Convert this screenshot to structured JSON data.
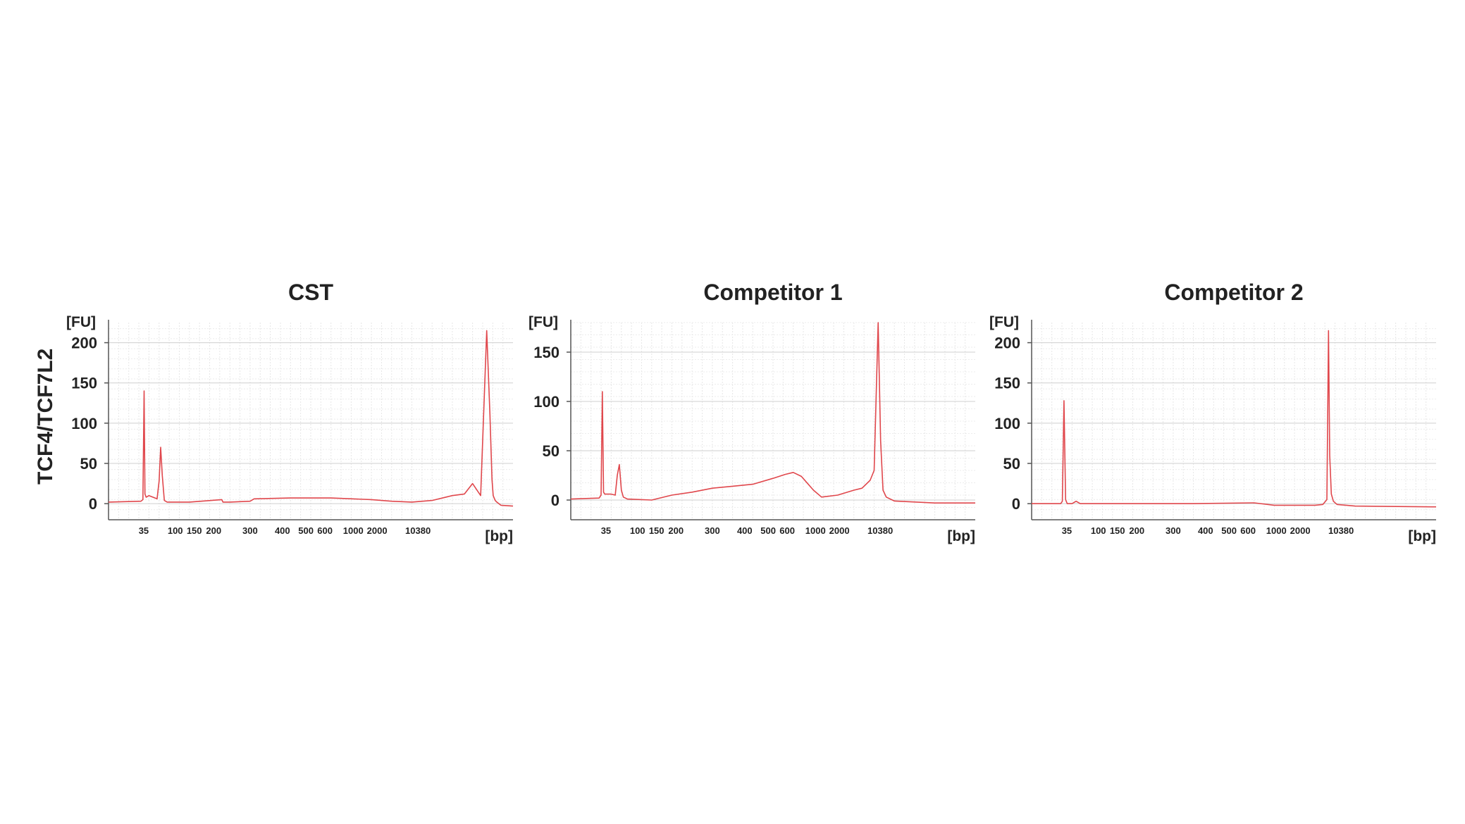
{
  "figure": {
    "gene_label": "TCF4/TCF7L2",
    "trace_color": "#e0474c",
    "grid_color": "#cfcfcf",
    "axis_color": "#555555"
  },
  "chart_data": [
    {
      "type": "line",
      "title": "CST",
      "ylabel": "[FU]",
      "xlabel": "[bp]",
      "ylim": [
        -20,
        225
      ],
      "yticks": [
        0,
        50,
        100,
        150,
        200
      ],
      "xticks": [
        "35",
        "100",
        "150",
        "200",
        "300",
        "400",
        "500",
        "600",
        "1000",
        "2000",
        "10380"
      ],
      "grid": true,
      "series": [
        {
          "x": [
            0,
            8,
            8.5,
            8.8,
            9.0,
            9.3,
            10,
            12,
            12.5,
            12.9,
            13.3,
            13.8,
            14.5,
            16,
            20,
            28,
            28.3,
            30,
            35,
            36,
            45,
            55,
            65,
            70,
            75,
            80,
            85,
            88,
            90,
            92,
            93.5,
            94.3,
            94.8,
            95.1,
            95.6,
            96,
            97,
            100
          ],
          "y": [
            2,
            3,
            5,
            140,
            12,
            8,
            10,
            6,
            28,
            70,
            35,
            4,
            2,
            2,
            2,
            5,
            2,
            2,
            3,
            6,
            7,
            7,
            5,
            3,
            2,
            4,
            10,
            12,
            25,
            10,
            215,
            110,
            30,
            10,
            4,
            2,
            -2,
            -3
          ]
        }
      ]
    },
    {
      "type": "line",
      "title": "Competitor 1",
      "ylabel": "[FU]",
      "xlabel": "[bp]",
      "ylim": [
        -20,
        180
      ],
      "yticks": [
        0,
        50,
        100,
        150
      ],
      "xticks": [
        "35",
        "100",
        "150",
        "200",
        "300",
        "400",
        "500",
        "600",
        "1000",
        "2000",
        "10380"
      ],
      "grid": true,
      "series": [
        {
          "x": [
            0,
            7,
            7.5,
            7.8,
            8.1,
            8.4,
            10,
            11,
            11.5,
            12,
            12.5,
            13,
            14,
            20,
            25,
            30,
            35,
            40,
            45,
            50,
            53,
            55,
            57,
            60,
            62,
            66,
            70,
            72,
            74,
            75,
            76,
            76.6,
            77.2,
            78,
            80,
            90,
            100
          ],
          "y": [
            1,
            2,
            5,
            110,
            8,
            6,
            6,
            5,
            25,
            36,
            10,
            3,
            1,
            0,
            5,
            8,
            12,
            14,
            16,
            22,
            26,
            28,
            24,
            10,
            3,
            5,
            10,
            12,
            20,
            30,
            180,
            60,
            10,
            3,
            -1,
            -3,
            -3
          ]
        }
      ]
    },
    {
      "type": "line",
      "title": "Competitor 2",
      "ylabel": "[FU]",
      "xlabel": "[bp]",
      "ylim": [
        -20,
        225
      ],
      "yticks": [
        0,
        50,
        100,
        150,
        200
      ],
      "xticks": [
        "35",
        "100",
        "150",
        "200",
        "300",
        "400",
        "500",
        "600",
        "1000",
        "2000",
        "10380"
      ],
      "grid": true,
      "series": [
        {
          "x": [
            0,
            7.2,
            7.6,
            8.0,
            8.4,
            8.8,
            10,
            11,
            12,
            20,
            40,
            55,
            60,
            70,
            72,
            73,
            73.4,
            73.7,
            74.1,
            74.6,
            75.5,
            80,
            100
          ],
          "y": [
            0,
            0,
            3,
            128,
            5,
            0,
            0,
            3,
            0,
            0,
            0,
            1,
            -2,
            -2,
            -1,
            5,
            215,
            60,
            12,
            3,
            -1,
            -3,
            -4
          ]
        }
      ]
    }
  ]
}
